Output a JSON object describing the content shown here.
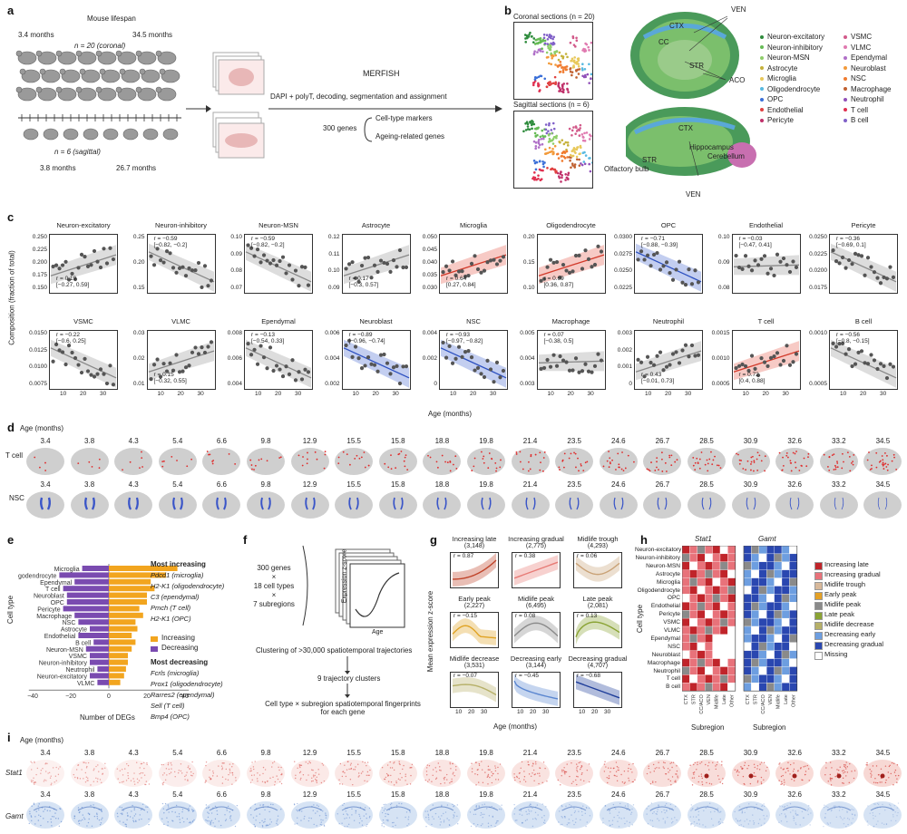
{
  "panels": {
    "a": "a",
    "b": "b",
    "c": "c",
    "d": "d",
    "e": "e",
    "f": "f",
    "g": "g",
    "h": "h",
    "i": "i"
  },
  "a": {
    "lifespan": "Mouse lifespan",
    "age_start_coronal": "3.4 months",
    "age_end_coronal": "34.5 months",
    "n_coronal": "n = 20 (coronal)",
    "n_sagittal": "n = 6 (sagittal)",
    "age_start_sagittal": "3.8 months",
    "age_end_sagittal": "26.7 months",
    "merfish": "MERFISH",
    "pipeline": "DAPI + polyT, decoding, segmentation and assignment",
    "genes": "300 genes",
    "markers": "Cell-type markers",
    "ageing": "Ageing-related genes"
  },
  "b": {
    "coronal": "Coronal sections (n = 20)",
    "sagittal": "Sagittal sections (n = 6)",
    "regions_coronal": [
      "VEN",
      "CTX",
      "CC",
      "STR",
      "ACO"
    ],
    "regions_sagittal": [
      "CTX",
      "STR",
      "Olfactory bulb",
      "Hippocampus",
      "Cerebellum",
      "VEN"
    ],
    "legend_left": [
      {
        "label": "Neuron-excitatory",
        "color": "#2e8b3c"
      },
      {
        "label": "Neuron-inhibitory",
        "color": "#66bb55"
      },
      {
        "label": "Neuron-MSN",
        "color": "#8fce6a"
      },
      {
        "label": "Astrocyte",
        "color": "#c5b13a"
      },
      {
        "label": "Microglia",
        "color": "#e8c85a"
      },
      {
        "label": "Oligodendrocyte",
        "color": "#58b9e0"
      },
      {
        "label": "OPC",
        "color": "#3a6fd8"
      },
      {
        "label": "Endothelial",
        "color": "#e04040"
      },
      {
        "label": "Pericyte",
        "color": "#c0306a"
      }
    ],
    "legend_right": [
      {
        "label": "VSMC",
        "color": "#d25a8a"
      },
      {
        "label": "VLMC",
        "color": "#e07ab0"
      },
      {
        "label": "Ependymal",
        "color": "#b070c8"
      },
      {
        "label": "Neuroblast",
        "color": "#f29a3a"
      },
      {
        "label": "NSC",
        "color": "#f07c30"
      },
      {
        "label": "Macrophage",
        "color": "#c06030"
      },
      {
        "label": "Neutrophil",
        "color": "#9050b8"
      },
      {
        "label": "T cell",
        "color": "#e03050"
      },
      {
        "label": "B cell",
        "color": "#8060c8"
      }
    ]
  },
  "c": {
    "ylabel": "Composition (fraction of total)",
    "xlabel": "Age (months)",
    "xticks": [
      "10",
      "20",
      "30"
    ],
    "plots": [
      {
        "title": "Neuron-excitatory",
        "stat": "r = 0.19\n[−0.27, 0.59]",
        "yticks": [
          "0.250",
          "0.225",
          "0.200",
          "0.175",
          "0.150"
        ],
        "trend": "up",
        "color": "#888888"
      },
      {
        "title": "Neuron-inhibitory",
        "stat": "r = −0.59\n[−0.82, −0.2]",
        "yticks": [
          "0.25",
          "0.20",
          "0.15"
        ],
        "trend": "down",
        "color": "#888888"
      },
      {
        "title": "Neuron-MSN",
        "stat": "r = −0.59\n[−0.82, −0.2]",
        "yticks": [
          "0.10",
          "0.09",
          "0.08",
          "0.07"
        ],
        "trend": "down",
        "color": "#888888"
      },
      {
        "title": "Astrocyte",
        "stat": "r = 0.17\n[−0.3, 0.57]",
        "yticks": [
          "0.12",
          "0.11",
          "0.10",
          "0.09"
        ],
        "trend": "up",
        "color": "#888888"
      },
      {
        "title": "Microglia",
        "stat": "r = 0.64\n[0.27, 0.84]",
        "yticks": [
          "0.050",
          "0.045",
          "0.040",
          "0.035",
          "0.030"
        ],
        "trend": "up",
        "color": "#d23a2a"
      },
      {
        "title": "Oligodendrocyte",
        "stat": "r = 0.69\n[0.36, 0.87]",
        "yticks": [
          "0.20",
          "0.15",
          "0.10"
        ],
        "trend": "up",
        "color": "#d23a2a"
      },
      {
        "title": "OPC",
        "stat": "r = −0.71\n[−0.88, −0.39]",
        "yticks": [
          "0.0300",
          "0.0275",
          "0.0250",
          "0.0225"
        ],
        "trend": "down",
        "color": "#2b4fc0"
      },
      {
        "title": "Endothelial",
        "stat": "r = −0.03\n[−0.47, 0.41]",
        "yticks": [
          "0.10",
          "0.09",
          "0.08"
        ],
        "trend": "flat",
        "color": "#888888"
      },
      {
        "title": "Pericyte",
        "stat": "r = −0.36\n[−0.69, 0.1]",
        "yticks": [
          "0.0250",
          "0.0225",
          "0.0200",
          "0.0175"
        ],
        "trend": "down",
        "color": "#888888"
      },
      {
        "title": "VSMC",
        "stat": "r = −0.22\n[−0.6, 0.25]",
        "yticks": [
          "0.0150",
          "0.0125",
          "0.0100",
          "0.0075"
        ],
        "trend": "down",
        "color": "#888888"
      },
      {
        "title": "VLMC",
        "stat": "r = 0.15\n[−0.32, 0.55]",
        "yticks": [
          "0.03",
          "0.02",
          "0.01"
        ],
        "trend": "up",
        "color": "#888888"
      },
      {
        "title": "Ependymal",
        "stat": "r = −0.13\n[−0.54, 0.33]",
        "yticks": [
          "0.008",
          "0.006",
          "0.004"
        ],
        "trend": "down",
        "color": "#888888"
      },
      {
        "title": "Neuroblast",
        "stat": "r = −0.89\n[−0.96, −0.74]",
        "yticks": [
          "0.006",
          "0.004",
          "0.002"
        ],
        "trend": "down",
        "color": "#2b4fc0"
      },
      {
        "title": "NSC",
        "stat": "r = −0.93\n[−0.97, −0.82]",
        "yticks": [
          "0.004",
          "0.002",
          "0"
        ],
        "trend": "down",
        "color": "#2b4fc0"
      },
      {
        "title": "Macrophage",
        "stat": "r = 0.07\n[−0.38, 0.5]",
        "yticks": [
          "0.005",
          "0.004",
          "0.003"
        ],
        "trend": "flat",
        "color": "#888888"
      },
      {
        "title": "Neutrophil",
        "stat": "r = 0.43\n[−0.01, 0.73]",
        "yticks": [
          "0.003",
          "0.002",
          "0.001",
          "0"
        ],
        "trend": "up",
        "color": "#888888"
      },
      {
        "title": "T cell",
        "stat": "r = 0.72\n[0.4, 0.88]",
        "yticks": [
          "0.0015",
          "0.0010",
          "0.0005"
        ],
        "trend": "up",
        "color": "#d23a2a"
      },
      {
        "title": "B cell",
        "stat": "r = −0.56\n[−0.8, −0.15]",
        "yticks": [
          "0.0010",
          "0.0005"
        ],
        "trend": "down",
        "color": "#888888"
      }
    ]
  },
  "d": {
    "age_label": "Age (months)",
    "ages": [
      "3.4",
      "3.8",
      "4.3",
      "5.4",
      "6.6",
      "9.8",
      "12.9",
      "15.5",
      "15.8",
      "18.8",
      "19.8",
      "21.4",
      "23.5",
      "24.6",
      "26.7",
      "28.5",
      "30.9",
      "32.6",
      "33.2",
      "34.5"
    ],
    "row1": "T cell",
    "row2": "NSC"
  },
  "e": {
    "ylabel": "Cell type",
    "xlabel": "Number of DEGs",
    "xticks": [
      "−40",
      "−20",
      "0",
      "20",
      "40"
    ],
    "cell_types": [
      "Microglia",
      "Oligodendrocyte",
      "Ependymal",
      "T cell",
      "Neuroblast",
      "OPC",
      "Pericyte",
      "Macrophage",
      "NSC",
      "Astrocyte",
      "Endothelial",
      "B cell",
      "Neuron-MSN",
      "VSMC",
      "Neuron-inhibitory",
      "Neutrophil",
      "Neuron-excitatory",
      "VLMC"
    ],
    "increasing": [
      36,
      30,
      22,
      24,
      20,
      20,
      16,
      18,
      14,
      15,
      12,
      14,
      12,
      10,
      10,
      9,
      8,
      6
    ],
    "decreasing": [
      -14,
      -26,
      -18,
      -24,
      -22,
      -22,
      -24,
      -18,
      -16,
      -10,
      -16,
      -8,
      -12,
      -10,
      -10,
      -6,
      -10,
      -6
    ],
    "legend_inc": "Increasing",
    "legend_dec": "Decreasing",
    "inc_color": "#f2a51f",
    "dec_color": "#7a4bb0",
    "most_inc_title": "Most increasing",
    "most_inc": [
      "Pdcd1 (microglia)",
      "H2-K1 (oligodendrocyte)",
      "C3 (ependymal)",
      "Pmch (T cell)",
      "H2-K1 (OPC)"
    ],
    "most_dec_title": "Most decreasing",
    "most_dec": [
      "Fcrls (microglia)",
      "Prox1 (oligodendrocyte)",
      "Rarres2 (ependymal)",
      "Sell (T cell)",
      "Bmp4 (OPC)"
    ]
  },
  "f": {
    "inputs": [
      "300 genes",
      "×",
      "18 cell types",
      "×",
      "7 subregions"
    ],
    "axis_y": "Expression z-score",
    "axis_x": "Age",
    "step1": "Clustering of >30,000 spatiotemporal trajectories",
    "step2": "9 trajectory clusters",
    "step3": "Cell type × subregion spatiotemporal fingerprints for each gene"
  },
  "g": {
    "ylabel": "Mean expression z-score",
    "xlabel": "Age (months)",
    "xticks": [
      "10",
      "20",
      "30"
    ],
    "clusters": [
      {
        "title": "Increasing late",
        "n": "(3,148)",
        "r": "r = 0.87",
        "color": "#c0442a",
        "shape": "late"
      },
      {
        "title": "Increasing gradual",
        "n": "(2,775)",
        "r": "r = 0.38",
        "color": "#e77b76",
        "shape": "grad"
      },
      {
        "title": "Midlife trough",
        "n": "(4,293)",
        "r": "r = 0.06",
        "color": "#c9a277",
        "shape": "trough"
      },
      {
        "title": "Early peak",
        "n": "(2,227)",
        "r": "r = −0.15",
        "color": "#e0a324",
        "shape": "early"
      },
      {
        "title": "Midlife peak",
        "n": "(6,495)",
        "r": "r = 0.08",
        "color": "#8a8a8a",
        "shape": "mid"
      },
      {
        "title": "Late peak",
        "n": "(2,081)",
        "r": "r = 0.13",
        "color": "#8aa334",
        "shape": "latepk"
      },
      {
        "title": "Midlife decrease",
        "n": "(3,531)",
        "r": "r = −0.07",
        "color": "#b6b068",
        "shape": "middec"
      },
      {
        "title": "Decreasing early",
        "n": "(3,144)",
        "r": "r = −0.45",
        "color": "#5a86d0",
        "shape": "decearly"
      },
      {
        "title": "Decreasing gradual",
        "n": "(4,707)",
        "r": "r = −0.68",
        "color": "#1f3e9a",
        "shape": "decgrad"
      }
    ]
  },
  "h": {
    "gene1": "Stat1",
    "gene2": "Gamt",
    "ylabel": "Cell type",
    "xlabel": "Subregion",
    "rows": [
      "Neuron-excitatory",
      "Neuron-inhibitory",
      "Neuron-MSN",
      "Astrocyte",
      "Microglia",
      "Oligodendrocyte",
      "OPC",
      "Endothelial",
      "Pericyte",
      "VSMC",
      "VLMC",
      "Ependymal",
      "NSC",
      "Neuroblast",
      "Macrophage",
      "Neutrophil",
      "T cell",
      "B cell"
    ],
    "cols": [
      "CTX",
      "STR",
      "CC/ACO",
      "VEN",
      "Midlife",
      "Late",
      "Other"
    ],
    "legend": [
      {
        "label": "Increasing late",
        "color": "#c0242a"
      },
      {
        "label": "Increasing gradual",
        "color": "#e8727a"
      },
      {
        "label": "Midlife trough",
        "color": "#d7b89a"
      },
      {
        "label": "Early peak",
        "color": "#e4a126"
      },
      {
        "label": "Midlife peak",
        "color": "#8a8a8a"
      },
      {
        "label": "Late peak",
        "color": "#8aa334"
      },
      {
        "label": "Midlife decrease",
        "color": "#b6b068"
      },
      {
        "label": "Decreasing early",
        "color": "#6d9ee0"
      },
      {
        "label": "Decreasing gradual",
        "color": "#2a47b0"
      },
      {
        "label": "Missing",
        "color": "#ffffff"
      }
    ]
  },
  "i": {
    "age_label": "Age (months)",
    "ages": [
      "3.4",
      "3.8",
      "4.3",
      "5.4",
      "6.6",
      "9.8",
      "12.9",
      "15.5",
      "15.8",
      "18.8",
      "19.8",
      "21.4",
      "23.5",
      "24.6",
      "26.7",
      "28.5",
      "30.9",
      "32.6",
      "33.2",
      "34.5"
    ],
    "row1": "Stat1",
    "row2": "Gamt"
  }
}
